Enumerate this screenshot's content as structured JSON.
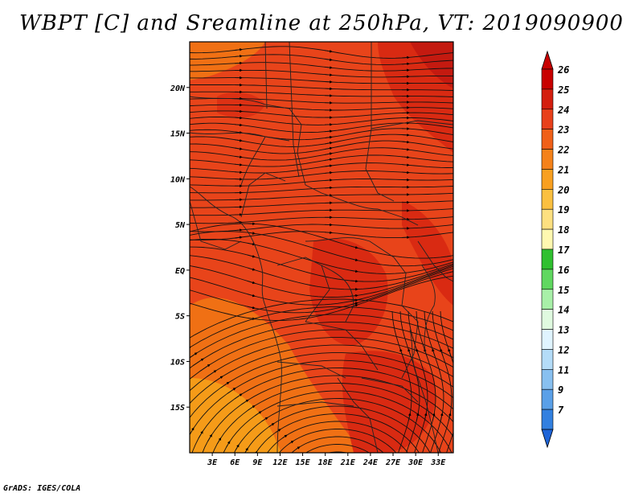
{
  "title": "WBPT [C] and Sreamline at 250hPa, VT: 2019090900",
  "credit": "GrADS: IGES/COLA",
  "map": {
    "lat_labels": [
      {
        "value": 20,
        "label": "20N"
      },
      {
        "value": 15,
        "label": "15N"
      },
      {
        "value": 10,
        "label": "10N"
      },
      {
        "value": 5,
        "label": "5N"
      },
      {
        "value": 0,
        "label": "EQ"
      },
      {
        "value": -5,
        "label": "5S"
      },
      {
        "value": -10,
        "label": "10S"
      },
      {
        "value": -15,
        "label": "15S"
      }
    ],
    "lon_labels": [
      {
        "value": 3,
        "label": "3E"
      },
      {
        "value": 6,
        "label": "6E"
      },
      {
        "value": 9,
        "label": "9E"
      },
      {
        "value": 12,
        "label": "12E"
      },
      {
        "value": 15,
        "label": "15E"
      },
      {
        "value": 18,
        "label": "18E"
      },
      {
        "value": 21,
        "label": "21E"
      },
      {
        "value": 24,
        "label": "24E"
      },
      {
        "value": 27,
        "label": "27E"
      },
      {
        "value": 30,
        "label": "30E"
      },
      {
        "value": 33,
        "label": "33E"
      }
    ],
    "lon_range": [
      0,
      35
    ],
    "lat_range": [
      -20,
      25
    ],
    "field_colors": {
      "dominant": "#e8441a",
      "warm": "#d92a12",
      "hot": "#c41a10",
      "cool": "#f07014",
      "coolest": "#f5a018"
    }
  },
  "colorbar": {
    "levels": [
      {
        "label": "26",
        "color": "#c80000"
      },
      {
        "label": "25",
        "color": "#d41e0e"
      },
      {
        "label": "24",
        "color": "#e8401a"
      },
      {
        "label": "23",
        "color": "#f06018"
      },
      {
        "label": "22",
        "color": "#f5821a"
      },
      {
        "label": "21",
        "color": "#f9a020"
      },
      {
        "label": "20",
        "color": "#fbc040"
      },
      {
        "label": "19",
        "color": "#fde080"
      },
      {
        "label": "18",
        "color": "#fff8b0"
      },
      {
        "label": "17",
        "color": "#30c030"
      },
      {
        "label": "16",
        "color": "#60d860"
      },
      {
        "label": "15",
        "color": "#a8f0a8"
      },
      {
        "label": "14",
        "color": "#e0fae0"
      },
      {
        "label": "13",
        "color": "#e0f4ff"
      },
      {
        "label": "12",
        "color": "#b4dcf8"
      },
      {
        "label": "11",
        "color": "#88c0f0"
      },
      {
        "label": "9",
        "color": "#5aa0e8"
      },
      {
        "label": "7",
        "color": "#3280e0"
      }
    ],
    "bottom_color": "#1e64d8"
  }
}
